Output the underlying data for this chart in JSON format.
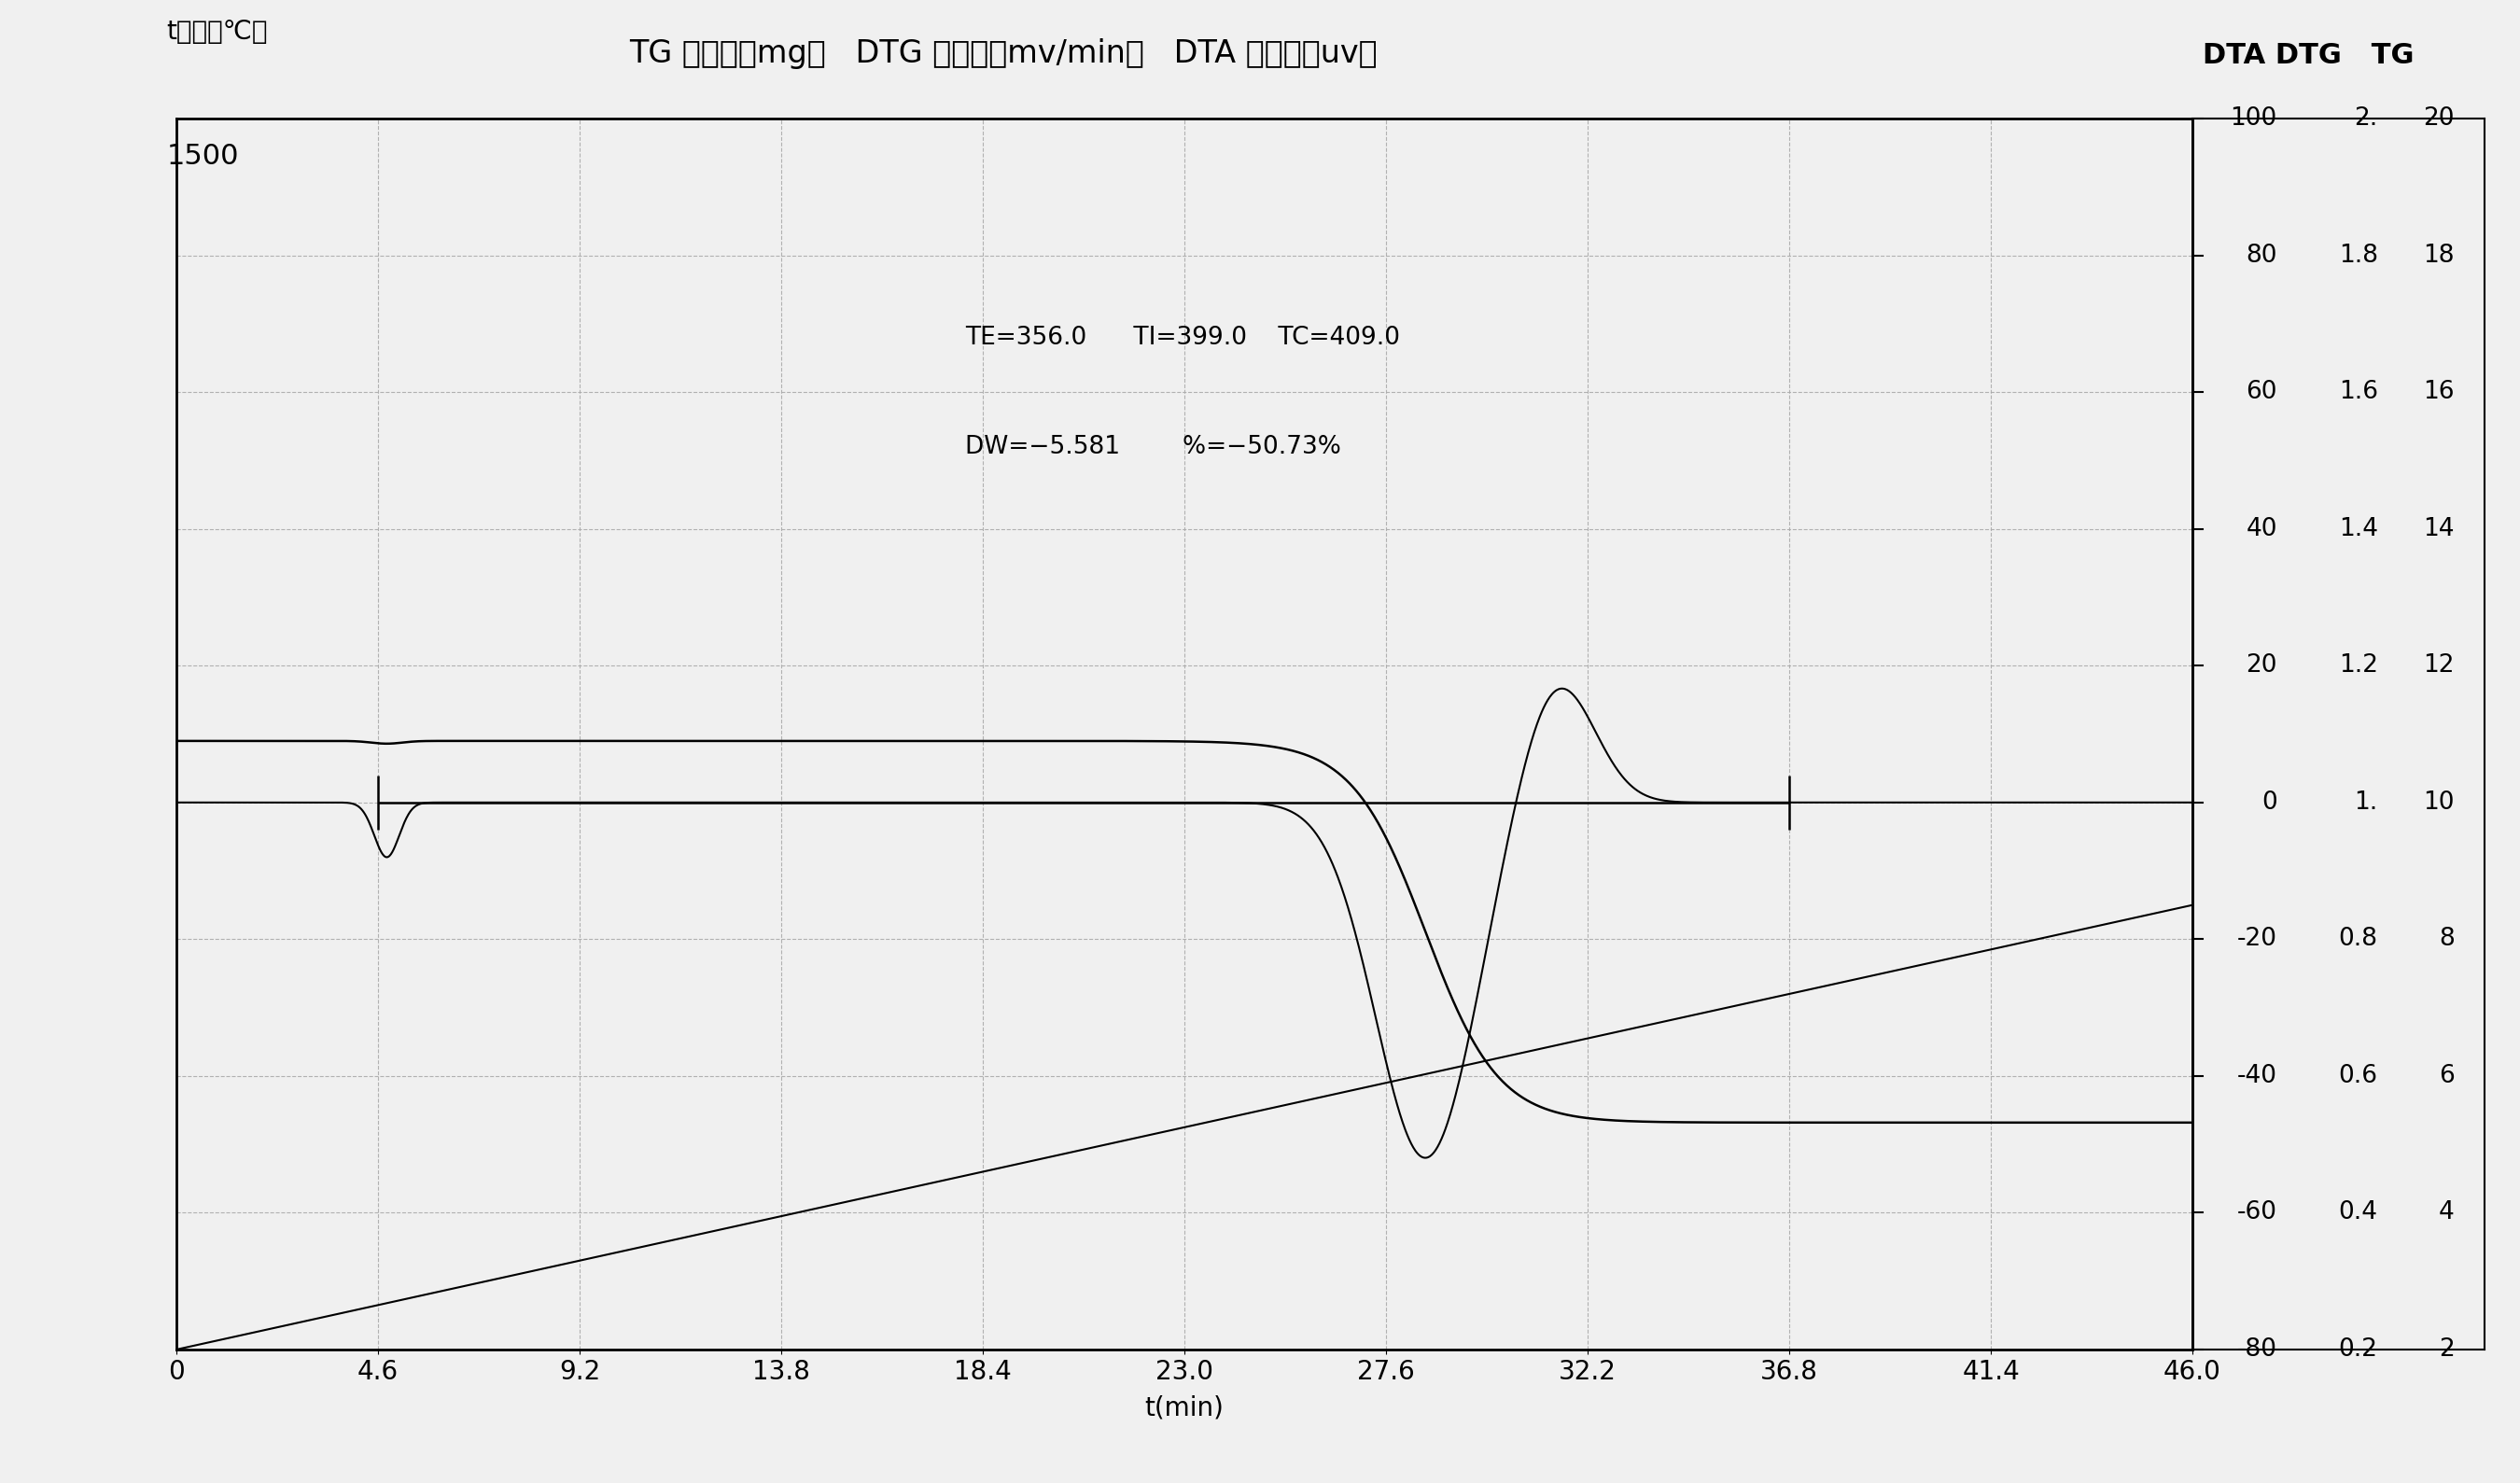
{
  "title_main": "TG 单位：《mg》   DTG 单位：《mv/min》   DTA 单位：《uv》",
  "title_right": "DTA DTG   TG",
  "left_label_top": "t《温度℃》",
  "left_label_1500": "1500",
  "xlabel": "t(min)",
  "xmin": 0,
  "xmax": 46.0,
  "xticks": [
    0,
    4.6,
    9.2,
    13.8,
    18.4,
    23.0,
    27.6,
    32.2,
    36.8,
    41.4,
    46.0
  ],
  "annotation_line1": "TE=356.0      TI=399.0    TC=409.0",
  "annotation_line2": "DW=−5.581        %=−50.73%",
  "right_DTA_labels": [
    100,
    80,
    60,
    40,
    20,
    0,
    -20,
    -40,
    -60,
    -80
  ],
  "right_DTG_labels": [
    "2.",
    "1.8",
    "1.6",
    "1.4",
    "1.2",
    "1.",
    "0.8",
    "0.6",
    "0.4",
    "0.2"
  ],
  "right_TG_labels": [
    "20",
    "18",
    "16",
    "14",
    "12",
    "10",
    "8",
    "6",
    "4",
    "2"
  ],
  "grid_color": "#aaaaaa",
  "bg_color": "#f0f0f0",
  "line_color": "#000000",
  "font_size_title": 24,
  "font_size_tick": 20,
  "font_size_label": 20,
  "font_size_annot": 19
}
